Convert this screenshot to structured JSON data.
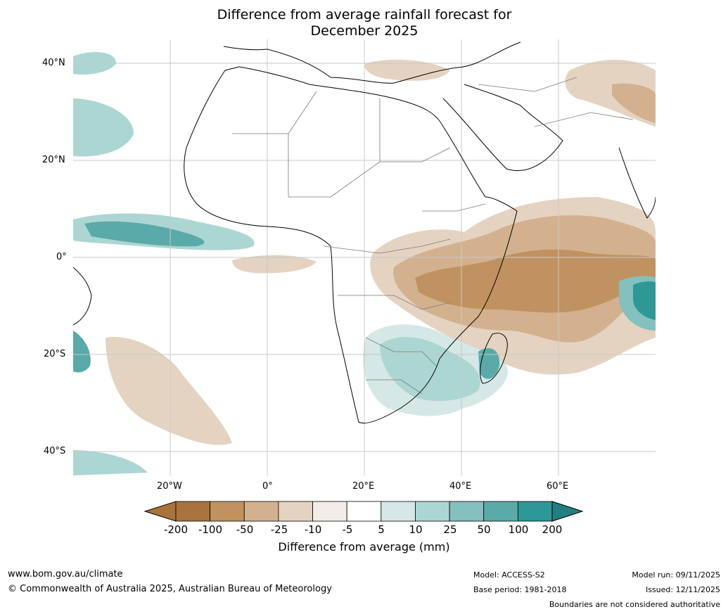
{
  "title": {
    "line1": "Difference from average rainfall forecast for",
    "line2": "December 2025"
  },
  "map": {
    "region": "Africa",
    "lat_labels": [
      "40°N",
      "20°N",
      "0°",
      "20°S",
      "40°S"
    ],
    "lon_labels": [
      "20°W",
      "0°",
      "20°E",
      "40°E",
      "60°E"
    ]
  },
  "legend": {
    "ticks": [
      "-200",
      "-100",
      "-50",
      "-25",
      "-10",
      "-5",
      "5",
      "10",
      "25",
      "50",
      "100",
      "200"
    ],
    "colors": [
      "#a8733c",
      "#c0925f",
      "#d3b18f",
      "#e5d3c1",
      "#f2ede6",
      "#ffffff",
      "#d5e8e5",
      "#acd6d3",
      "#83c0be",
      "#5aaaa9",
      "#2e9896"
    ],
    "end_low_color": "#a8733c",
    "end_high_color": "#1f807f",
    "title": "Difference from average (mm)"
  },
  "footer": {
    "url": "www.bom.gov.au/climate",
    "copyright": "© Commonwealth of Australia 2025, Australian Bureau of Meteorology",
    "model": "Model: ACCESS-S2",
    "base_period": "Base period: 1981-2018",
    "model_run": "Model run: 09/11/2025",
    "issued": "Issued: 12/11/2025",
    "boundaries": "Boundaries are not considered authoritative"
  }
}
